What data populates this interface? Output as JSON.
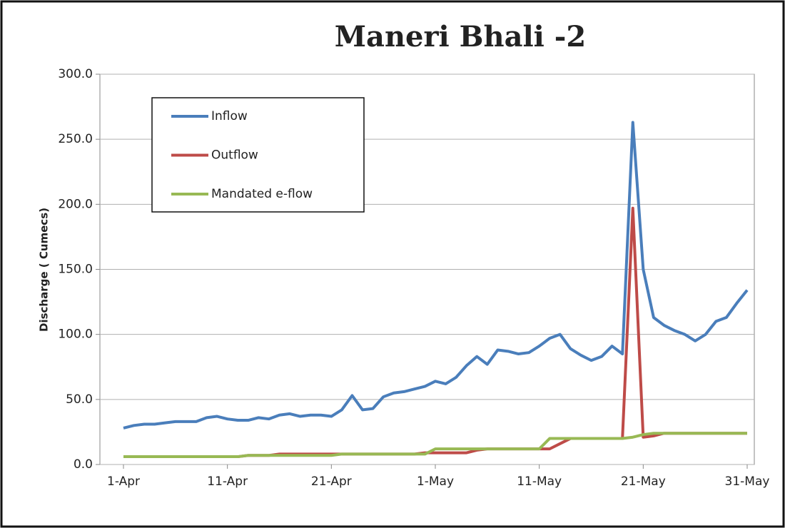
{
  "chart_data": {
    "type": "line",
    "title": "Maneri Bhali -2",
    "y_label": "Discharge ( Cumecs)",
    "categories": [
      "1-Apr",
      null,
      null,
      null,
      null,
      null,
      null,
      null,
      null,
      null,
      "11-Apr",
      null,
      null,
      null,
      null,
      null,
      null,
      null,
      null,
      null,
      "21-Apr",
      null,
      null,
      null,
      null,
      null,
      null,
      null,
      null,
      null,
      "1-May",
      null,
      null,
      null,
      null,
      null,
      null,
      null,
      null,
      null,
      "11-May",
      null,
      null,
      null,
      null,
      null,
      null,
      null,
      null,
      null,
      "21-May",
      null,
      null,
      null,
      null,
      null,
      null,
      null,
      null,
      null,
      "31-May"
    ],
    "series": [
      {
        "name": "Inflow",
        "color": "#4a7ebb",
        "values": [
          28,
          30,
          31,
          31,
          32,
          33,
          33,
          33,
          36,
          37,
          35,
          34,
          34,
          36,
          35,
          38,
          39,
          37,
          38,
          38,
          37,
          42,
          53,
          42,
          43,
          52,
          55,
          56,
          58,
          60,
          64,
          62,
          67,
          76,
          83,
          77,
          88,
          87,
          85,
          86,
          91,
          97,
          100,
          89,
          84,
          80,
          83,
          91,
          85,
          263,
          150,
          113,
          107,
          103,
          100,
          95,
          100,
          110,
          113,
          124,
          134
        ]
      },
      {
        "name": "Outflow",
        "color": "#be4b48",
        "values": [
          6,
          6,
          6,
          6,
          6,
          6,
          6,
          6,
          6,
          6,
          6,
          6,
          7,
          7,
          7,
          8,
          8,
          8,
          8,
          8,
          8,
          8,
          8,
          8,
          8,
          8,
          8,
          8,
          8,
          9,
          9,
          9,
          9,
          9,
          11,
          12,
          12,
          12,
          12,
          12,
          12,
          12,
          16,
          20,
          20,
          20,
          20,
          20,
          20,
          197,
          21,
          22,
          24,
          24,
          24,
          24,
          24,
          24,
          24,
          24,
          24
        ]
      },
      {
        "name": "Mandated e-flow",
        "color": "#98b954",
        "values": [
          6,
          6,
          6,
          6,
          6,
          6,
          6,
          6,
          6,
          6,
          6,
          6,
          7,
          7,
          7,
          7,
          7,
          7,
          7,
          7,
          7,
          8,
          8,
          8,
          8,
          8,
          8,
          8,
          8,
          8,
          12,
          12,
          12,
          12,
          12,
          12,
          12,
          12,
          12,
          12,
          12,
          20,
          20,
          20,
          20,
          20,
          20,
          20,
          20,
          21,
          23,
          24,
          24,
          24,
          24,
          24,
          24,
          24,
          24,
          24,
          24
        ]
      }
    ],
    "ylim": [
      0,
      300
    ],
    "yticks": [
      {
        "value": 0,
        "label": "0.0"
      },
      {
        "value": 50,
        "label": "50.0"
      },
      {
        "value": 100,
        "label": "100.0"
      },
      {
        "value": 150,
        "label": "150.0"
      },
      {
        "value": 200,
        "label": "200.0"
      },
      {
        "value": 250,
        "label": "250.0"
      },
      {
        "value": 300,
        "label": "300.0"
      }
    ],
    "grid": true
  }
}
